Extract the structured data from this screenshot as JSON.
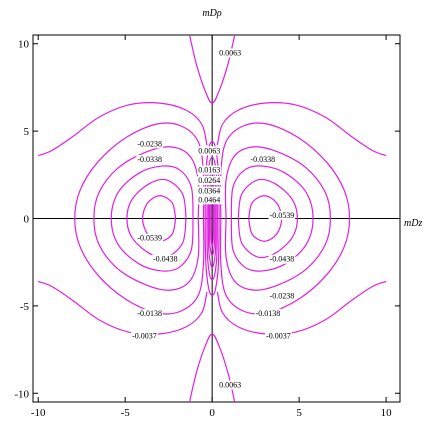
{
  "chart_data": {
    "type": "contour",
    "color": "#e020e0",
    "x_label": "mDz",
    "y_label": "mDρ",
    "xlim": [
      -10.3,
      10.8
    ],
    "ylim": [
      -10.5,
      10.5
    ],
    "xticks": [
      -10,
      -5,
      0,
      5,
      10
    ],
    "yticks": [
      -10,
      -5,
      0,
      5,
      10
    ],
    "contours": [
      {
        "x": [
          2.1,
          2.3,
          3.0,
          3.7,
          4.0,
          3.7,
          3.0,
          2.3,
          2.1
        ],
        "y": [
          0,
          0.9,
          1.3,
          0.9,
          0,
          -0.9,
          -1.3,
          -0.9,
          0
        ]
      },
      {
        "x": [
          -2.1,
          -2.3,
          -3.0,
          -3.7,
          -4.0,
          -3.7,
          -3.0,
          -2.3,
          -2.1
        ],
        "y": [
          0,
          0.9,
          1.3,
          0.9,
          0,
          -0.9,
          -1.3,
          -0.9,
          0
        ]
      },
      {
        "x": [
          1.5,
          1.7,
          2.6,
          3.6,
          4.6,
          4.9,
          4.6,
          3.6,
          2.6,
          1.7,
          1.5
        ],
        "y": [
          0,
          1.4,
          2.2,
          2.0,
          1.1,
          0,
          -1.1,
          -2.0,
          -2.2,
          -1.4,
          0
        ]
      },
      {
        "x": [
          -1.5,
          -1.7,
          -2.6,
          -3.6,
          -4.6,
          -4.9,
          -4.6,
          -3.6,
          -2.6,
          -1.7,
          -1.5
        ],
        "y": [
          0,
          1.4,
          2.2,
          2.0,
          1.1,
          0,
          -1.1,
          -2.0,
          -2.2,
          -1.4,
          0
        ]
      },
      {
        "x": [
          1.1,
          1.2,
          1.9,
          2.9,
          4.2,
          5.4,
          5.8,
          5.4,
          4.2,
          2.9,
          1.9,
          1.2,
          1.1
        ],
        "y": [
          0,
          1.8,
          2.8,
          3.0,
          2.6,
          1.5,
          0,
          -1.5,
          -2.6,
          -3.0,
          -2.8,
          -1.8,
          0
        ]
      },
      {
        "x": [
          -1.1,
          -1.2,
          -1.9,
          -2.9,
          -4.2,
          -5.4,
          -5.8,
          -5.4,
          -4.2,
          -2.9,
          -1.9,
          -1.2,
          -1.1
        ],
        "y": [
          0,
          1.8,
          2.8,
          3.0,
          2.6,
          1.5,
          0,
          -1.5,
          -2.6,
          -3.0,
          -2.8,
          -1.8,
          0
        ]
      },
      {
        "x": [
          0.8,
          0.8,
          1.3,
          2.4,
          3.8,
          5.4,
          6.5,
          6.8,
          6.5,
          5.4,
          3.8,
          2.4,
          1.3,
          0.8,
          0.8
        ],
        "y": [
          0,
          2.2,
          3.6,
          4.1,
          3.8,
          2.9,
          1.5,
          0,
          -1.5,
          -2.9,
          -3.8,
          -4.1,
          -3.6,
          -2.2,
          0
        ]
      },
      {
        "x": [
          -0.8,
          -0.8,
          -1.3,
          -2.4,
          -3.8,
          -5.4,
          -6.5,
          -6.8,
          -6.5,
          -5.4,
          -3.8,
          -2.4,
          -1.3,
          -0.8,
          -0.8
        ],
        "y": [
          0,
          2.2,
          3.6,
          4.1,
          3.8,
          2.9,
          1.5,
          0,
          -1.5,
          -2.9,
          -3.8,
          -4.1,
          -3.6,
          -2.2,
          0
        ]
      },
      {
        "x": [
          0.5,
          0.5,
          0.8,
          1.8,
          3.2,
          5.0,
          6.6,
          7.6,
          7.9,
          7.6,
          6.6,
          5.0,
          3.2,
          1.8,
          0.8,
          0.5,
          0.5
        ],
        "y": [
          0,
          2.6,
          4.4,
          5.3,
          5.4,
          4.6,
          3.2,
          1.6,
          0,
          -1.6,
          -3.2,
          -4.6,
          -5.4,
          -5.3,
          -4.4,
          -2.6,
          0
        ]
      },
      {
        "x": [
          -0.5,
          -0.5,
          -0.8,
          -1.8,
          -3.2,
          -5.0,
          -6.6,
          -7.6,
          -7.9,
          -7.6,
          -6.6,
          -5.0,
          -3.2,
          -1.8,
          -0.8,
          -0.5,
          -0.5
        ],
        "y": [
          0,
          2.6,
          4.4,
          5.3,
          5.4,
          4.6,
          3.2,
          1.6,
          0,
          -1.6,
          -3.2,
          -4.6,
          -5.4,
          -5.3,
          -4.4,
          -2.6,
          0
        ]
      },
      {
        "x": [
          0.3,
          0.6,
          1.5,
          3.0,
          4.8,
          6.5,
          8.0,
          9.2,
          10.0
        ],
        "y": [
          4.2,
          5.4,
          6.2,
          6.6,
          6.5,
          5.8,
          4.7,
          3.9,
          3.6
        ]
      },
      {
        "x": [
          -0.3,
          -0.6,
          -1.5,
          -3.0,
          -4.8,
          -6.5,
          -8.0,
          -9.2,
          -10.0
        ],
        "y": [
          4.2,
          5.4,
          6.2,
          6.6,
          6.5,
          5.8,
          4.7,
          3.9,
          3.6
        ]
      },
      {
        "x": [
          0.3,
          0.6,
          1.5,
          3.0,
          4.8,
          6.5,
          8.0,
          9.2,
          10.0
        ],
        "y": [
          -4.2,
          -5.4,
          -6.2,
          -6.6,
          -6.5,
          -5.8,
          -4.7,
          -3.9,
          -3.6
        ]
      },
      {
        "x": [
          -0.3,
          -0.6,
          -1.5,
          -3.0,
          -4.8,
          -6.5,
          -8.0,
          -9.2,
          -10.0
        ],
        "y": [
          -4.2,
          -5.4,
          -6.2,
          -6.6,
          -6.5,
          -5.8,
          -4.7,
          -3.9,
          -3.6
        ]
      },
      {
        "x": [
          -1.3,
          -0.9,
          -0.4,
          0,
          0.4,
          0.9,
          1.3
        ],
        "y": [
          10.5,
          8.8,
          7.3,
          6.6,
          7.3,
          8.8,
          10.5
        ]
      },
      {
        "x": [
          -1.3,
          -0.9,
          -0.4,
          0,
          0.4,
          0.9,
          1.3
        ],
        "y": [
          -10.5,
          -8.8,
          -7.3,
          -6.6,
          -7.3,
          -8.8,
          -10.5
        ]
      },
      {
        "x": [
          0.4,
          0.36,
          0.2,
          0,
          -0.2,
          -0.36,
          -0.4,
          -0.36,
          -0.2,
          0,
          0.2,
          0.36,
          0.4
        ],
        "y": [
          0,
          2.6,
          4.0,
          4.4,
          4.0,
          2.6,
          0,
          -2.6,
          -4.0,
          -4.4,
          -4.0,
          -2.6,
          0
        ]
      },
      {
        "x": [
          0.3,
          0.27,
          0.15,
          0,
          -0.15,
          -0.27,
          -0.3,
          -0.27,
          -0.15,
          0,
          0.15,
          0.27,
          0.3
        ],
        "y": [
          0,
          2.1,
          3.2,
          3.5,
          3.2,
          2.1,
          0,
          -2.1,
          -3.2,
          -3.5,
          -3.2,
          -2.1,
          0
        ]
      },
      {
        "x": [
          0.22,
          0.2,
          0.11,
          0,
          -0.11,
          -0.2,
          -0.22,
          -0.2,
          -0.11,
          0,
          0.11,
          0.2,
          0.22
        ],
        "y": [
          0,
          1.7,
          2.5,
          2.8,
          2.5,
          1.7,
          0,
          -1.7,
          -2.5,
          -2.8,
          -2.5,
          -1.7,
          0
        ]
      },
      {
        "x": [
          0.15,
          0.14,
          0.08,
          0,
          -0.08,
          -0.14,
          -0.15,
          -0.14,
          -0.08,
          0,
          0.08,
          0.14,
          0.15
        ],
        "y": [
          0,
          1.3,
          1.9,
          2.1,
          1.9,
          1.3,
          0,
          -1.3,
          -1.9,
          -2.1,
          -1.9,
          -1.3,
          0
        ]
      },
      {
        "x": [
          0.08,
          0.07,
          0.04,
          0,
          -0.04,
          -0.07,
          -0.08,
          -0.07,
          -0.04,
          0,
          0.04,
          0.07,
          0.08
        ],
        "y": [
          0,
          0.9,
          1.4,
          1.5,
          1.4,
          0.9,
          0,
          -0.9,
          -1.4,
          -1.5,
          -1.4,
          -0.9,
          0
        ]
      }
    ],
    "labels": [
      {
        "value": 0.0063,
        "label": "0.0063",
        "x": 0.4,
        "y": 9.5
      },
      {
        "value": 0.0063,
        "label": "0.0063",
        "x": 0.4,
        "y": -9.5
      },
      {
        "value": -0.0238,
        "label": "-0.0238",
        "x": -4.3,
        "y": 4.3
      },
      {
        "value": -0.0338,
        "label": "-0.0338",
        "x": -4.3,
        "y": 3.4
      },
      {
        "value": -0.0338,
        "label": "-0.0338",
        "x": 2.2,
        "y": 3.4
      },
      {
        "value": 0.0063,
        "label": "0.0063",
        "x": -0.8,
        "y": 3.9
      },
      {
        "value": 0.0163,
        "label": "0.0163",
        "x": -0.8,
        "y": 2.8
      },
      {
        "value": 0.0264,
        "label": "0.0264",
        "x": -0.8,
        "y": 2.2
      },
      {
        "value": 0.0364,
        "label": "0.0364",
        "x": -0.8,
        "y": 1.6
      },
      {
        "value": 0.0464,
        "label": "0.0464",
        "x": -0.8,
        "y": 1.1
      },
      {
        "value": -0.0539,
        "label": "-0.0539",
        "x": -4.3,
        "y": -1.1
      },
      {
        "value": -0.0539,
        "label": "-0.0539",
        "x": 3.3,
        "y": 0.2
      },
      {
        "value": -0.0438,
        "label": "-0.0438",
        "x": -3.4,
        "y": -2.3
      },
      {
        "value": -0.0438,
        "label": "-0.0438",
        "x": 3.3,
        "y": -2.3
      },
      {
        "value": -0.0238,
        "label": "-0.0238",
        "x": 3.3,
        "y": -4.4
      },
      {
        "value": -0.0138,
        "label": "-0.0138",
        "x": -4.3,
        "y": -5.4
      },
      {
        "value": -0.0138,
        "label": "-0.0138",
        "x": 2.5,
        "y": -5.4
      },
      {
        "value": -0.0037,
        "label": "-0.0037",
        "x": -4.6,
        "y": -6.7
      },
      {
        "value": -0.0037,
        "label": "-0.0037",
        "x": 3.1,
        "y": -6.7
      }
    ]
  }
}
